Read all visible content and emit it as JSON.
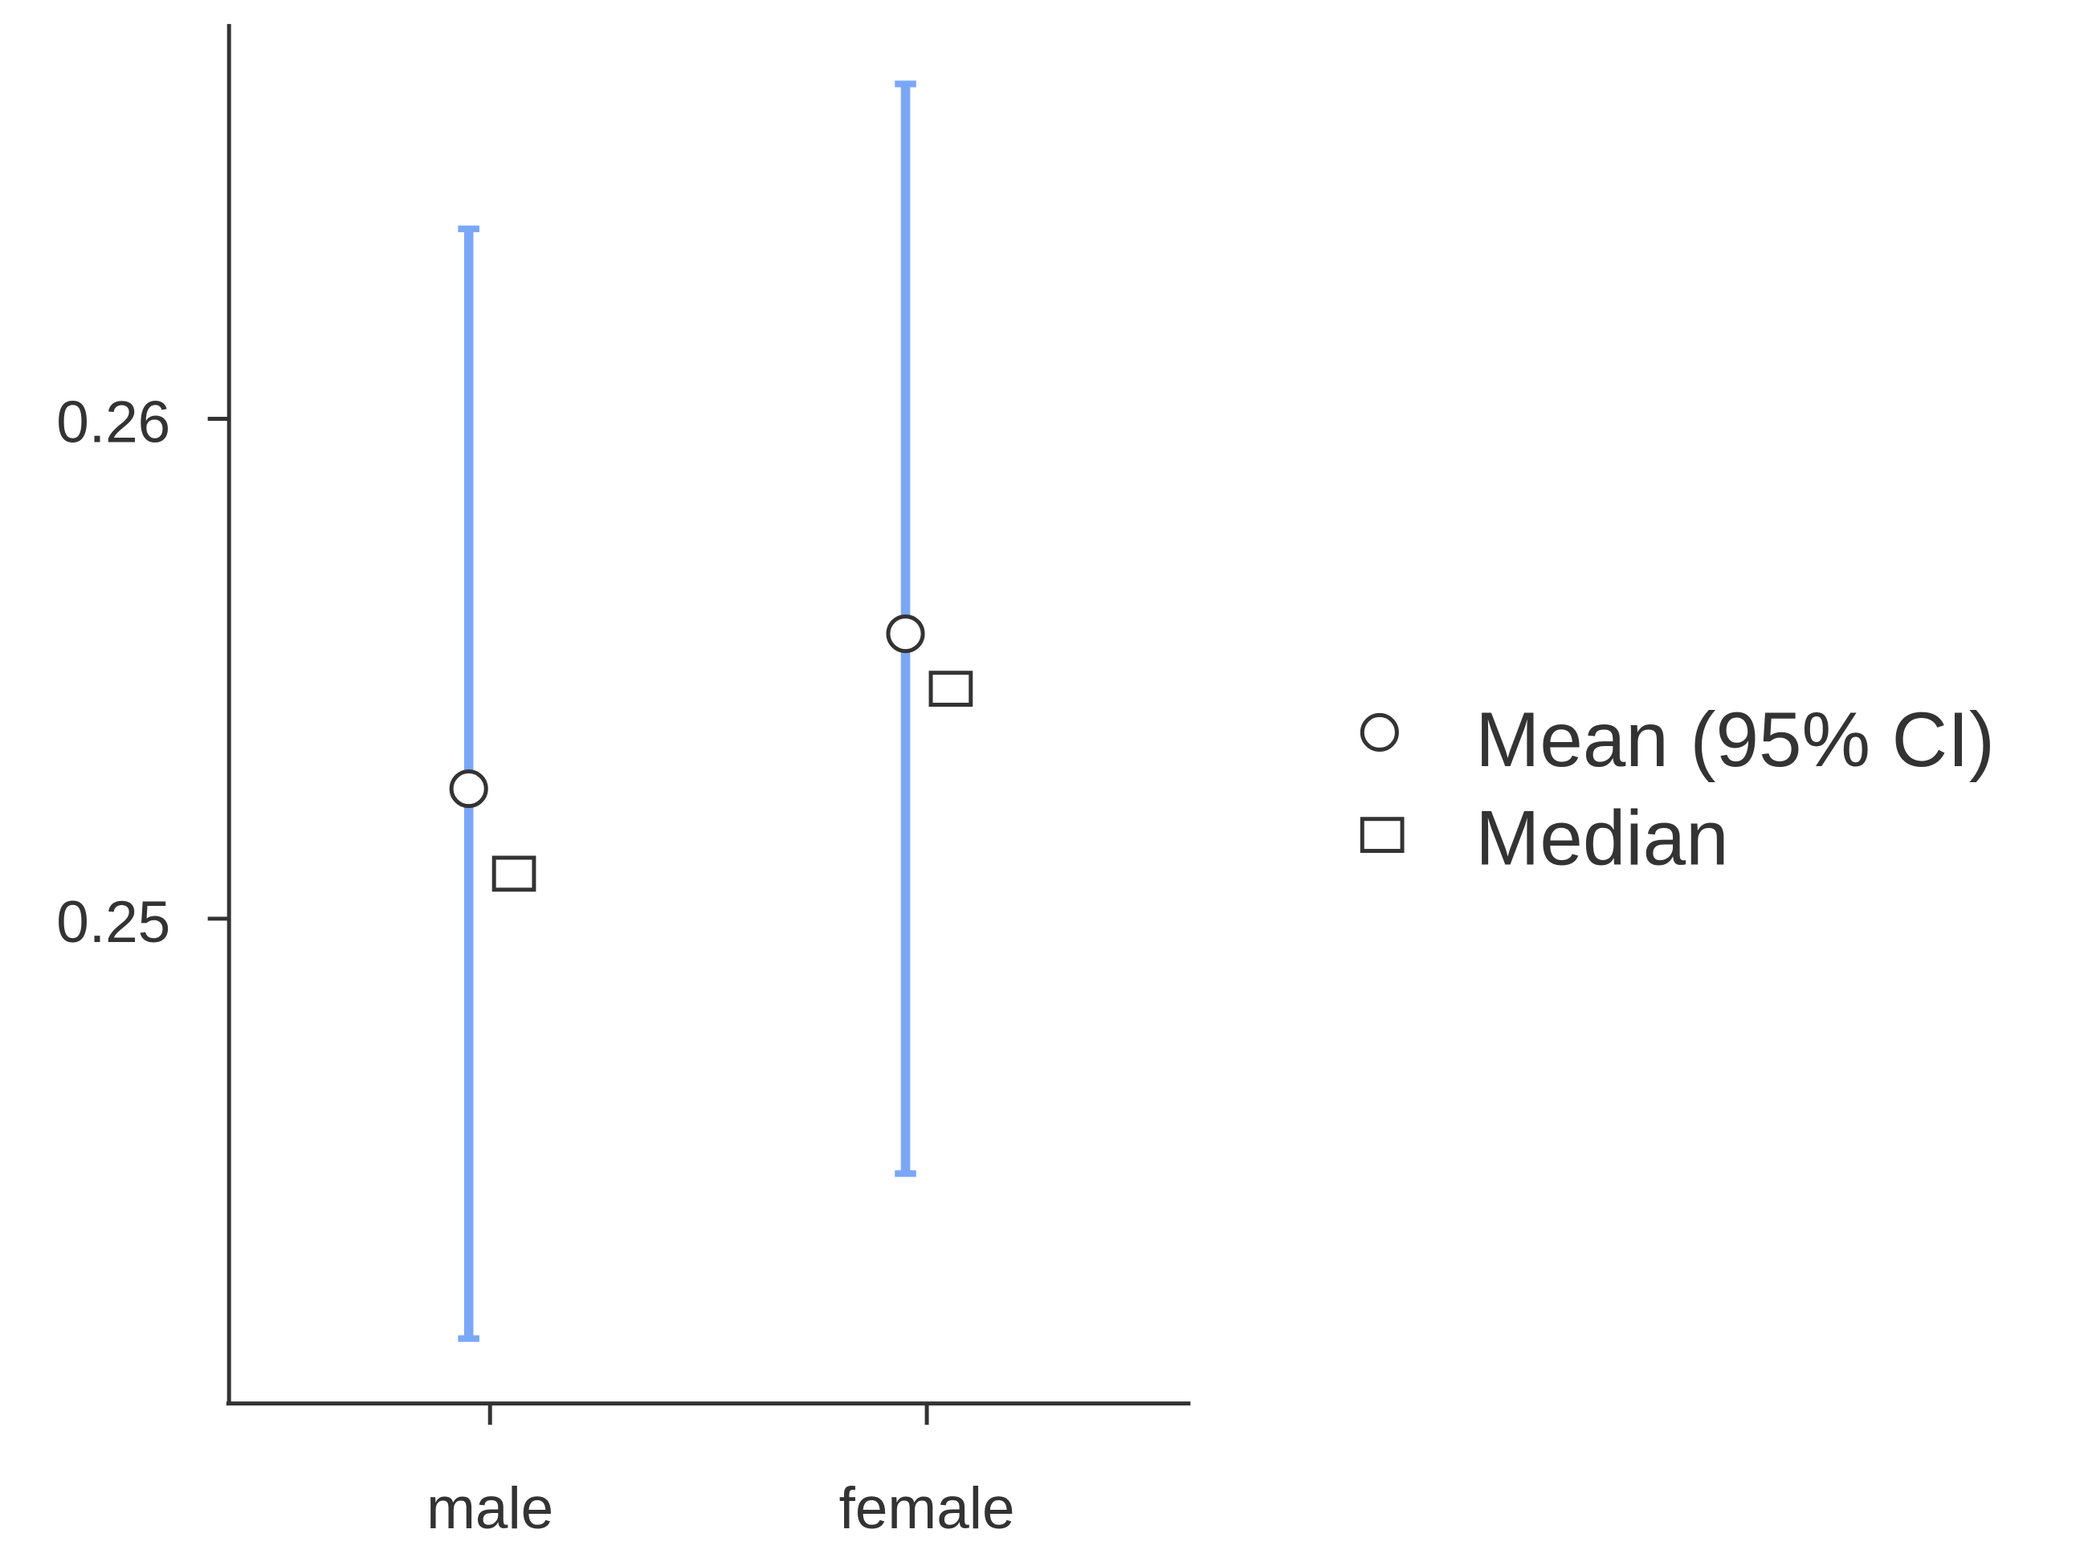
{
  "chart_data": {
    "type": "errorbar",
    "categories": [
      "male",
      "female"
    ],
    "series": [
      {
        "name": "Mean (95% CI)",
        "color": "#7ba7f7",
        "values": [
          0.2526,
          0.2557
        ],
        "ci_lower": [
          0.2416,
          0.2449
        ],
        "ci_upper": [
          0.2638,
          0.2667
        ]
      },
      {
        "name": "Median",
        "values": [
          0.2509,
          0.2546
        ]
      }
    ],
    "ylim": [
      0.2403,
      0.2679
    ],
    "yticks": [
      0.25,
      0.26
    ],
    "legend": "right"
  }
}
